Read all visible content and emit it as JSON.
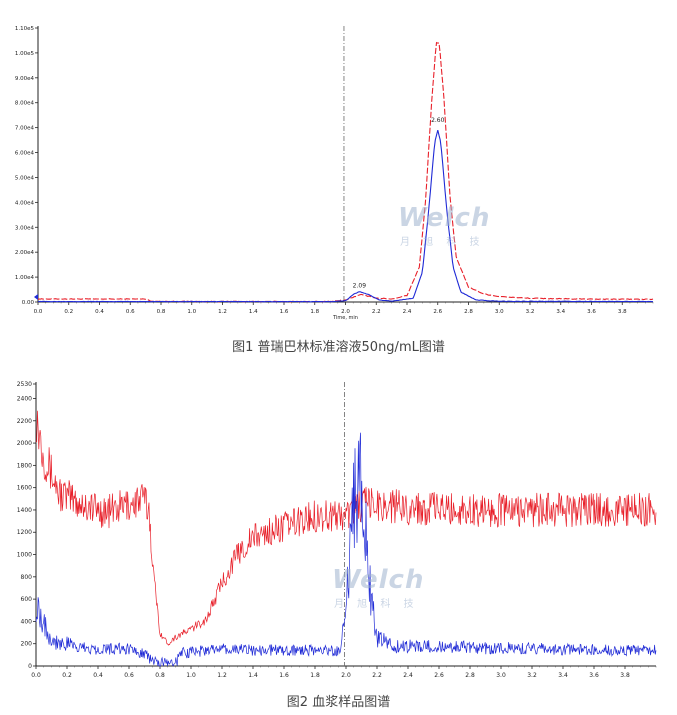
{
  "watermark": {
    "logo": "Welch",
    "sub": "月 旭 科 技"
  },
  "chart_data": [
    {
      "type": "line",
      "title": "",
      "caption": "图1 普瑞巴林标准溶液50ng/mL图谱",
      "xlabel": "Time, min",
      "ylabel": "",
      "xlim": [
        0.0,
        4.0
      ],
      "ylim": [
        0,
        110000
      ],
      "x_ticks": [
        "0.0",
        "0.2",
        "0.4",
        "0.6",
        "0.8",
        "1.0",
        "1.2",
        "1.4",
        "1.6",
        "1.8",
        "2.0",
        "2.2",
        "2.4",
        "2.6",
        "2.8",
        "3.0",
        "3.2",
        "3.4",
        "3.6",
        "3.8"
      ],
      "y_ticks": [
        {
          "v": 0,
          "label": "0.00"
        },
        {
          "v": 10000,
          "label": "1.00e4"
        },
        {
          "v": 20000,
          "label": "2.00e4"
        },
        {
          "v": 30000,
          "label": "3.00e4"
        },
        {
          "v": 40000,
          "label": "4.00e4"
        },
        {
          "v": 50000,
          "label": "5.00e4"
        },
        {
          "v": 60000,
          "label": "6.00e4"
        },
        {
          "v": 70000,
          "label": "7.00e4"
        },
        {
          "v": 80000,
          "label": "8.00e4"
        },
        {
          "v": 90000,
          "label": "9.00e4"
        },
        {
          "v": 100000,
          "label": "1.00e5"
        },
        {
          "v": 110000,
          "label": "1.10e5"
        }
      ],
      "vline": 1.99,
      "annotations": [
        {
          "x": 2.09,
          "y": 4600,
          "text": "2.09"
        },
        {
          "x": 2.6,
          "y": 71000,
          "text": "2.60"
        }
      ],
      "series": [
        {
          "color": "#e8202a",
          "dashed": true,
          "points": [
            [
              0,
              1200
            ],
            [
              0.7,
              1200
            ],
            [
              0.74,
              300
            ],
            [
              1.0,
              200
            ],
            [
              1.9,
              200
            ],
            [
              2.0,
              800
            ],
            [
              2.1,
              3000
            ],
            [
              2.2,
              1600
            ],
            [
              2.3,
              1200
            ],
            [
              2.4,
              2600
            ],
            [
              2.48,
              14000
            ],
            [
              2.52,
              40000
            ],
            [
              2.56,
              80000
            ],
            [
              2.59,
              104000
            ],
            [
              2.61,
              104000
            ],
            [
              2.64,
              82000
            ],
            [
              2.68,
              42000
            ],
            [
              2.72,
              18000
            ],
            [
              2.8,
              6000
            ],
            [
              2.9,
              3200
            ],
            [
              3.0,
              2200
            ],
            [
              3.2,
              1500
            ],
            [
              3.5,
              1200
            ],
            [
              3.99,
              1100
            ]
          ]
        },
        {
          "color": "#1f2ad6",
          "dashed": false,
          "points": [
            [
              0,
              200
            ],
            [
              1.9,
              150
            ],
            [
              2.0,
              500
            ],
            [
              2.05,
              3000
            ],
            [
              2.09,
              4200
            ],
            [
              2.15,
              3000
            ],
            [
              2.22,
              800
            ],
            [
              2.3,
              300
            ],
            [
              2.44,
              1500
            ],
            [
              2.5,
              12000
            ],
            [
              2.54,
              36000
            ],
            [
              2.58,
              64000
            ],
            [
              2.6,
              69000
            ],
            [
              2.62,
              64000
            ],
            [
              2.66,
              36000
            ],
            [
              2.7,
              14000
            ],
            [
              2.75,
              4000
            ],
            [
              2.85,
              800
            ],
            [
              3.0,
              300
            ],
            [
              3.99,
              200
            ]
          ]
        }
      ]
    },
    {
      "type": "line",
      "title": "",
      "caption": "图2 血浆样品图谱",
      "xlabel": "",
      "ylabel": "",
      "xlim": [
        0.0,
        4.0
      ],
      "ylim": [
        0,
        2530
      ],
      "x_ticks": [
        "0.0",
        "0.2",
        "0.4",
        "0.6",
        "0.8",
        "1.0",
        "1.2",
        "1.4",
        "1.6",
        "1.8",
        "2.0",
        "2.2",
        "2.4",
        "2.6",
        "2.8",
        "3.0",
        "3.2",
        "3.4",
        "3.6",
        "3.8"
      ],
      "y_ticks": [
        {
          "v": 0,
          "label": "0"
        },
        {
          "v": 200,
          "label": "200"
        },
        {
          "v": 400,
          "label": "400"
        },
        {
          "v": 600,
          "label": "600"
        },
        {
          "v": 800,
          "label": "800"
        },
        {
          "v": 1000,
          "label": "1000"
        },
        {
          "v": 1200,
          "label": "1200"
        },
        {
          "v": 1400,
          "label": "1400"
        },
        {
          "v": 1600,
          "label": "1600"
        },
        {
          "v": 1800,
          "label": "1800"
        },
        {
          "v": 2000,
          "label": "2000"
        },
        {
          "v": 2200,
          "label": "2200"
        },
        {
          "v": 2400,
          "label": "2400"
        },
        {
          "v": 2530,
          "label": "2530"
        }
      ],
      "vline": 1.99,
      "annotations": [],
      "series": [
        {
          "color": "#e8202a",
          "dashed": false,
          "points": [
            [
              0,
              2250
            ],
            [
              0.05,
              1900
            ],
            [
              0.15,
              1550
            ],
            [
              0.3,
              1450
            ],
            [
              0.45,
              1380
            ],
            [
              0.6,
              1450
            ],
            [
              0.7,
              1500
            ],
            [
              0.73,
              1380
            ],
            [
              0.76,
              800
            ],
            [
              0.8,
              300
            ],
            [
              0.85,
              200
            ],
            [
              0.9,
              260
            ],
            [
              1.0,
              330
            ],
            [
              1.1,
              420
            ],
            [
              1.2,
              750
            ],
            [
              1.3,
              1000
            ],
            [
              1.4,
              1150
            ],
            [
              1.6,
              1250
            ],
            [
              1.8,
              1350
            ],
            [
              2.0,
              1350
            ],
            [
              2.1,
              1450
            ],
            [
              2.2,
              1450
            ],
            [
              2.4,
              1420
            ],
            [
              2.8,
              1400
            ],
            [
              3.2,
              1400
            ],
            [
              3.6,
              1400
            ],
            [
              3.99,
              1400
            ]
          ]
        },
        {
          "color": "#1f2ad6",
          "dashed": false,
          "points": [
            [
              0,
              600
            ],
            [
              0.05,
              400
            ],
            [
              0.1,
              230
            ],
            [
              0.3,
              160
            ],
            [
              0.6,
              150
            ],
            [
              0.7,
              120
            ],
            [
              0.75,
              40
            ],
            [
              0.85,
              20
            ],
            [
              0.9,
              30
            ],
            [
              0.95,
              120
            ],
            [
              1.2,
              150
            ],
            [
              1.6,
              140
            ],
            [
              1.9,
              140
            ],
            [
              1.96,
              120
            ],
            [
              2.0,
              500
            ],
            [
              2.05,
              1400
            ],
            [
              2.08,
              1700
            ],
            [
              2.12,
              1300
            ],
            [
              2.16,
              600
            ],
            [
              2.2,
              250
            ],
            [
              2.3,
              180
            ],
            [
              2.6,
              170
            ],
            [
              3.0,
              160
            ],
            [
              3.4,
              150
            ],
            [
              3.99,
              140
            ]
          ]
        }
      ]
    }
  ]
}
